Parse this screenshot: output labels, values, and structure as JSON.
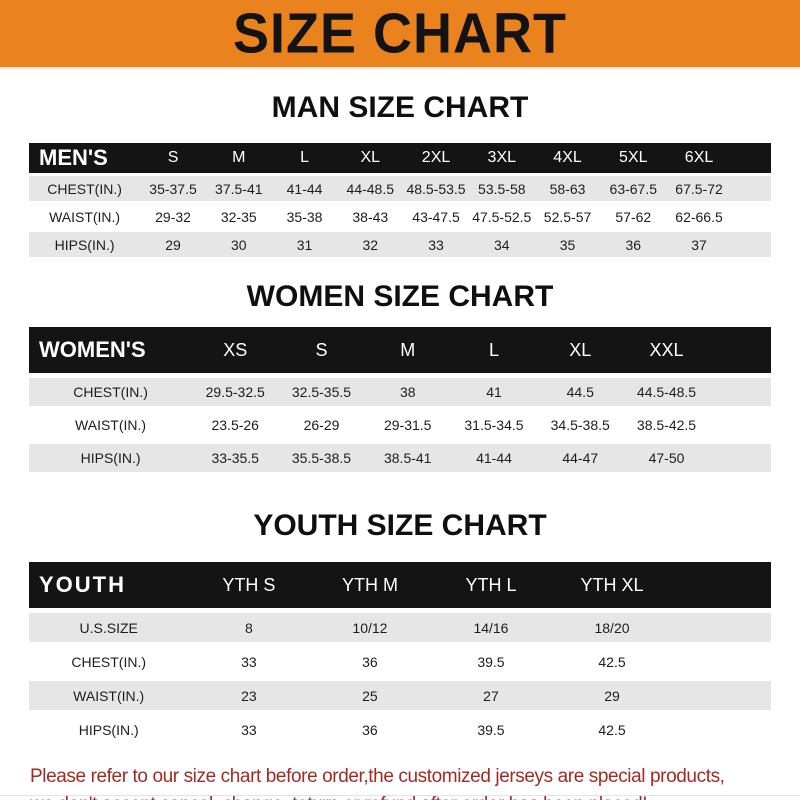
{
  "banner": {
    "title": "SIZE CHART"
  },
  "sections": {
    "men": {
      "heading": "MAN SIZE CHART",
      "table": {
        "header_label": "MEN'S",
        "columns": [
          "S",
          "M",
          "L",
          "XL",
          "2XL",
          "3XL",
          "4XL",
          "5XL",
          "6XL"
        ],
        "rows": [
          {
            "label": "CHEST(IN.)",
            "values": [
              "35-37.5",
              "37.5-41",
              "41-44",
              "44-48.5",
              "48.5-53.5",
              "53.5-58",
              "58-63",
              "63-67.5",
              "67.5-72"
            ]
          },
          {
            "label": "WAIST(IN.)",
            "values": [
              "29-32",
              "32-35",
              "35-38",
              "38-43",
              "43-47.5",
              "47.5-52.5",
              "52.5-57",
              "57-62",
              "62-66.5"
            ]
          },
          {
            "label": "HIPS(IN.)",
            "values": [
              "29",
              "30",
              "31",
              "32",
              "33",
              "34",
              "35",
              "36",
              "37"
            ]
          }
        ]
      }
    },
    "women": {
      "heading": "WOMEN SIZE CHART",
      "table": {
        "header_label": "WOMEN'S",
        "columns": [
          "XS",
          "S",
          "M",
          "L",
          "XL",
          "XXL"
        ],
        "rows": [
          {
            "label": "CHEST(IN.)",
            "values": [
              "29.5-32.5",
              "32.5-35.5",
              "38",
              "41",
              "44.5",
              "44.5-48.5"
            ]
          },
          {
            "label": "WAIST(IN.)",
            "values": [
              "23.5-26",
              "26-29",
              "29-31.5",
              "31.5-34.5",
              "34.5-38.5",
              "38.5-42.5"
            ]
          },
          {
            "label": "HIPS(IN.)",
            "values": [
              "33-35.5",
              "35.5-38.5",
              "38.5-41",
              "41-44",
              "44-47",
              "47-50"
            ]
          }
        ]
      }
    },
    "youth": {
      "heading": "YOUTH SIZE CHART",
      "table": {
        "header_label": "YOUTH",
        "columns": [
          "YTH S",
          "YTH M",
          "YTH L",
          "YTH XL"
        ],
        "rows": [
          {
            "label": "U.S.SIZE",
            "values": [
              "8",
              "10/12",
              "14/16",
              "18/20"
            ]
          },
          {
            "label": "CHEST(IN.)",
            "values": [
              "33",
              "36",
              "39.5",
              "42.5"
            ]
          },
          {
            "label": "WAIST(IN.)",
            "values": [
              "23",
              "25",
              "27",
              "29"
            ]
          },
          {
            "label": "HIPS(IN.)",
            "values": [
              "33",
              "36",
              "39.5",
              "42.5"
            ]
          }
        ]
      }
    }
  },
  "footer": {
    "line1": "Please refer to our size chart before order,the customized jerseys are special products,",
    "line2": "we don't accept cancel, change, teturn or refund after order has been placed!"
  },
  "colors": {
    "banner_orange": "#EA831D",
    "header_bar_black": "#141414",
    "row_gray": "#E6E6E6",
    "footer_red": "#9F2B24"
  }
}
